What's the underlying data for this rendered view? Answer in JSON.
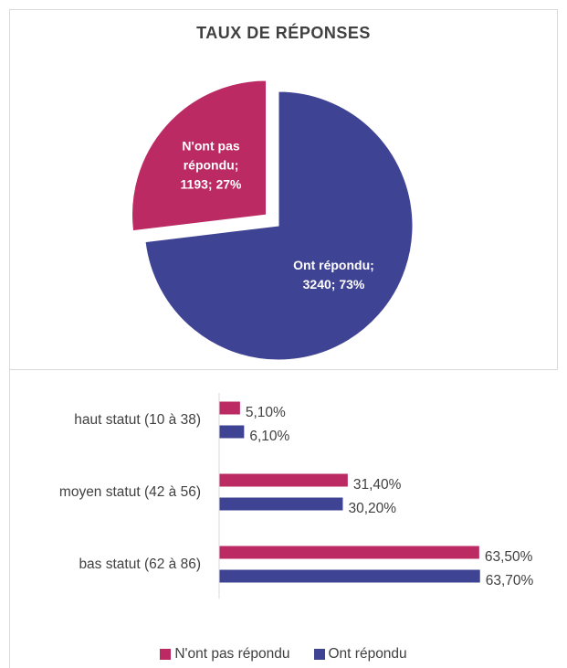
{
  "chart_data": [
    {
      "type": "pie",
      "title": "TAUX DE RÉPONSES",
      "categories": [
        "Ont répondu",
        "N'ont pas répondu"
      ],
      "values": [
        3240,
        1193
      ],
      "value_labels": [
        "Ont répondu; 3240; 73%",
        "N'ont pas répondu; 1193; 27%"
      ],
      "colors": [
        "#3f4393",
        "#bb2a63"
      ]
    },
    {
      "type": "bar",
      "orientation": "horizontal",
      "categories": [
        "haut statut (10 à 38)",
        "moyen statut (42 à 56)",
        "bas statut (62 à 86)"
      ],
      "series": [
        {
          "name": "N'ont pas répondu",
          "color": "#bb2a63",
          "values": [
            5.1,
            31.4,
            63.5
          ],
          "value_labels": [
            "5,10%",
            "31,40%",
            "63,50%"
          ]
        },
        {
          "name": "Ont répondu",
          "color": "#3f4393",
          "values": [
            6.1,
            30.2,
            63.7
          ],
          "value_labels": [
            "6,10%",
            "30,20%",
            "63,70%"
          ]
        }
      ],
      "xlim": [
        0,
        70
      ],
      "legend": "bottom"
    }
  ]
}
